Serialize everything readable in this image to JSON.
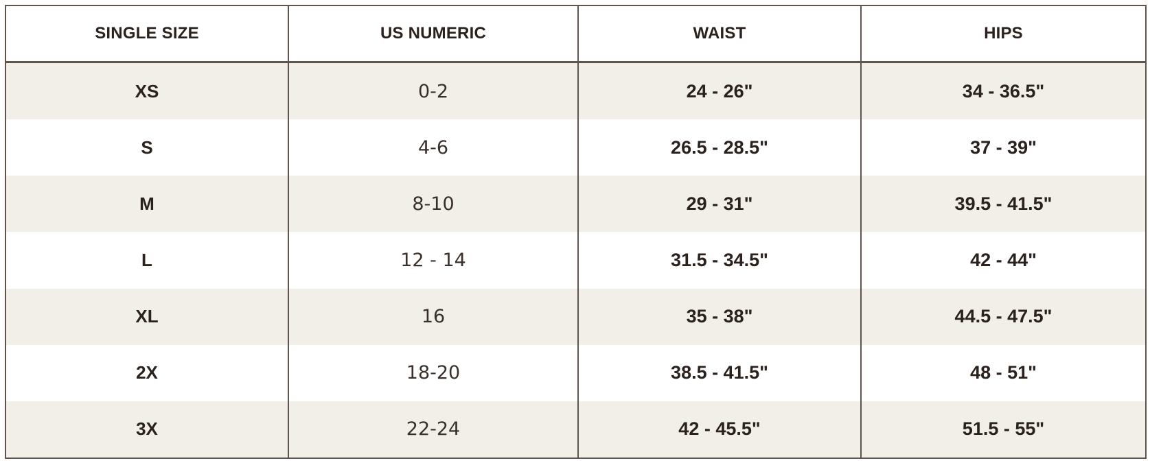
{
  "size_chart": {
    "headers": {
      "single_size": "SINGLE SIZE",
      "us_numeric": "US NUMERIC",
      "waist": "WAIST",
      "hips": "HIPS"
    },
    "rows": [
      {
        "single_size": "XS",
        "us_numeric": "0-2",
        "waist": "24 - 26\"",
        "hips": "34 - 36.5\""
      },
      {
        "single_size": "S",
        "us_numeric": "4-6",
        "waist": "26.5 - 28.5\"",
        "hips": "37 - 39\""
      },
      {
        "single_size": "M",
        "us_numeric": "8-10",
        "waist": "29 - 31\"",
        "hips": "39.5 - 41.5\""
      },
      {
        "single_size": "L",
        "us_numeric": "12 - 14",
        "waist": "31.5 - 34.5\"",
        "hips": "42 - 44\""
      },
      {
        "single_size": "XL",
        "us_numeric": "16",
        "waist": "35 - 38\"",
        "hips": "44.5 - 47.5\""
      },
      {
        "single_size": "2X",
        "us_numeric": "18-20",
        "waist": "38.5 - 41.5\"",
        "hips": "48 - 51\""
      },
      {
        "single_size": "3X",
        "us_numeric": "22-24",
        "waist": "42 - 45.5\"",
        "hips": "51.5 - 55\""
      }
    ]
  }
}
